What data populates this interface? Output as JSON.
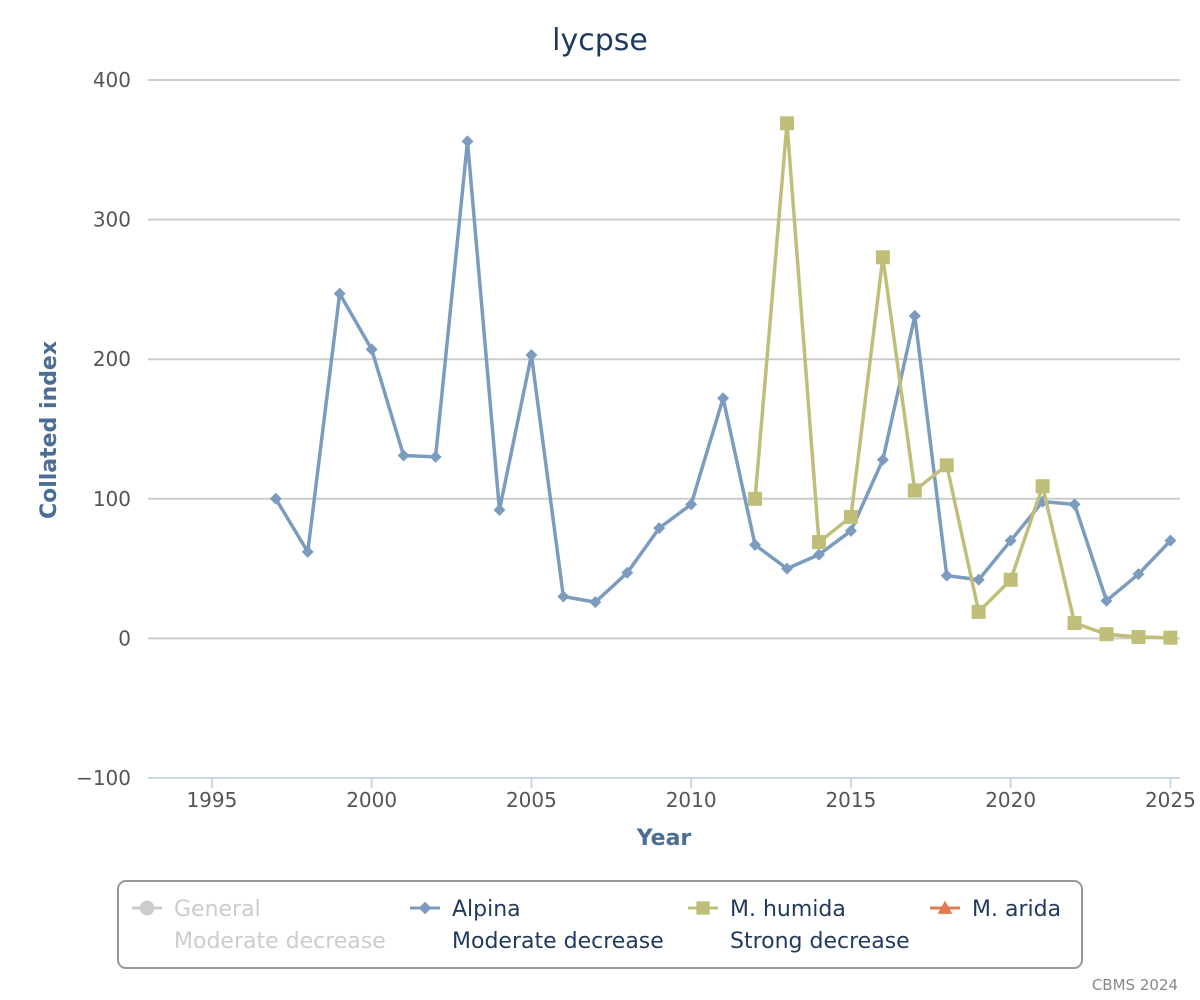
{
  "chart_data": {
    "type": "line",
    "title": "lycpse",
    "xlabel": "Year",
    "ylabel": "Collated index",
    "xlim": [
      1993,
      2025.3
    ],
    "ylim": [
      -100,
      400
    ],
    "x_ticks": [
      "1995",
      "2000",
      "2005",
      "2010",
      "2015",
      "2020",
      "2025"
    ],
    "y_ticks": [
      "400",
      "300",
      "200",
      "100",
      "0",
      "−100"
    ],
    "series": [
      {
        "name": "General",
        "trend": "Moderate decrease",
        "color": "#cccccc",
        "marker": "circle",
        "visible": false,
        "x": [],
        "values": []
      },
      {
        "name": "Alpina",
        "trend": "Moderate decrease",
        "color": "#7b9cbf",
        "marker": "diamond",
        "visible": true,
        "x": [
          1997,
          1998,
          1999,
          2000,
          2001,
          2002,
          2003,
          2004,
          2005,
          2006,
          2007,
          2008,
          2009,
          2010,
          2011,
          2012,
          2013,
          2014,
          2015,
          2016,
          2017,
          2018,
          2019,
          2020,
          2021,
          2022,
          2023,
          2024,
          2025
        ],
        "values": [
          100,
          62,
          247,
          207,
          131,
          130,
          356,
          92,
          203,
          30,
          26,
          47,
          79,
          96,
          172,
          67,
          50,
          60,
          77,
          128,
          231,
          45,
          42,
          70,
          98,
          96,
          27,
          46,
          70
        ]
      },
      {
        "name": "M. humida",
        "trend": "Strong decrease",
        "color": "#bfbf7a",
        "marker": "square",
        "visible": true,
        "x": [
          2012,
          2013,
          2014,
          2015,
          2016,
          2017,
          2018,
          2019,
          2020,
          2021,
          2022,
          2023,
          2024,
          2025
        ],
        "values": [
          100,
          369,
          69,
          87,
          273,
          106,
          124,
          19,
          42,
          109,
          11,
          3,
          1,
          0.5
        ]
      },
      {
        "name": "M. arida",
        "trend": "",
        "color": "#e07b4f",
        "marker": "triangle",
        "visible": true,
        "x": [],
        "values": []
      }
    ],
    "legend_position": "bottom",
    "grid": true
  },
  "credit": "CBMS 2024"
}
